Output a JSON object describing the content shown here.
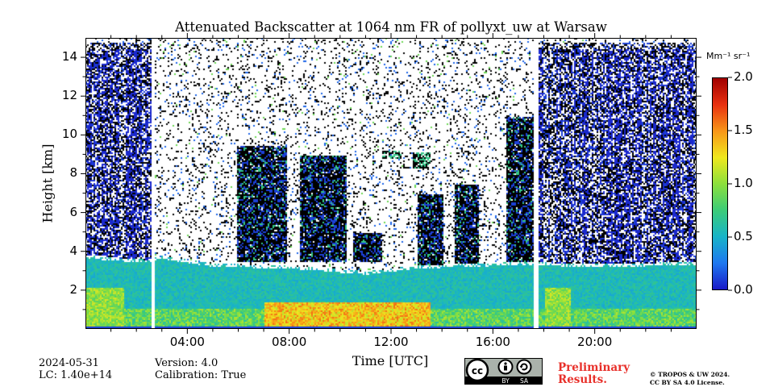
{
  "chart_data": {
    "type": "heatmap",
    "title": "Attenuated Backscatter at 1064 nm FR of pollyxt_uw at Warsaw",
    "xlabel": "Time [UTC]",
    "ylabel": "Height [km]",
    "xlim": [
      0,
      24
    ],
    "ylim": [
      0,
      15
    ],
    "x_ticks": [
      {
        "value": 4,
        "label": "04:00"
      },
      {
        "value": 8,
        "label": "08:00"
      },
      {
        "value": 12,
        "label": "12:00"
      },
      {
        "value": 16,
        "label": "16:00"
      },
      {
        "value": 20,
        "label": "20:00"
      }
    ],
    "x_minor_step": 1,
    "y_ticks": [
      {
        "value": 2,
        "label": "2"
      },
      {
        "value": 4,
        "label": "4"
      },
      {
        "value": 6,
        "label": "6"
      },
      {
        "value": 8,
        "label": "8"
      },
      {
        "value": 10,
        "label": "10"
      },
      {
        "value": 12,
        "label": "12"
      },
      {
        "value": 14,
        "label": "14"
      }
    ],
    "colorbar": {
      "label": "Mm⁻¹ sr⁻¹",
      "range": [
        0.0,
        2.0
      ],
      "ticks": [
        {
          "value": 0.0,
          "label": "0.0"
        },
        {
          "value": 0.5,
          "label": "0.5"
        },
        {
          "value": 1.0,
          "label": "1.0"
        },
        {
          "value": 1.5,
          "label": "1.5"
        },
        {
          "value": 2.0,
          "label": "2.0"
        }
      ],
      "colormap": [
        "#1a1ac8",
        "#1e78f0",
        "#18b4c8",
        "#3ccc78",
        "#8ce03c",
        "#f0e81e",
        "#f89618",
        "#e83010",
        "#a00000"
      ]
    },
    "data_gaps_hours": [
      [
        2.55,
        2.7
      ],
      [
        17.6,
        17.75
      ]
    ],
    "boundary_layer_top_km": [
      {
        "t": 0.2,
        "h": 3.8
      },
      {
        "t": 2.4,
        "h": 3.6
      },
      {
        "t": 3.0,
        "h": 3.8
      },
      {
        "t": 5.0,
        "h": 3.4
      },
      {
        "t": 8.0,
        "h": 3.3
      },
      {
        "t": 11.0,
        "h": 3.0
      },
      {
        "t": 13.0,
        "h": 3.3
      },
      {
        "t": 15.0,
        "h": 3.4
      },
      {
        "t": 17.5,
        "h": 3.5
      },
      {
        "t": 19.0,
        "h": 3.4
      },
      {
        "t": 21.0,
        "h": 3.4
      },
      {
        "t": 23.9,
        "h": 3.5
      }
    ],
    "cloud_layers": [
      {
        "t0": 5.9,
        "t1": 7.9,
        "h0": 3.5,
        "h1": 9.5
      },
      {
        "t0": 8.4,
        "t1": 10.2,
        "h0": 3.5,
        "h1": 9.0
      },
      {
        "t0": 10.5,
        "t1": 11.6,
        "h0": 3.5,
        "h1": 5.0
      },
      {
        "t0": 13.0,
        "t1": 14.0,
        "h0": 3.0,
        "h1": 7.0
      },
      {
        "t0": 14.5,
        "t1": 15.4,
        "h0": 3.0,
        "h1": 7.5
      },
      {
        "t0": 16.5,
        "t1": 17.6,
        "h0": 3.5,
        "h1": 11.0
      }
    ],
    "elevated_features": [
      {
        "t0": 11.6,
        "t1": 12.4,
        "h0": 8.8,
        "h1": 9.2
      },
      {
        "t0": 12.8,
        "t1": 13.5,
        "h0": 8.3,
        "h1": 9.1
      }
    ]
  },
  "footer": {
    "date": "2024-05-31",
    "lc": "LC: 1.40e+14",
    "version": "Version: 4.0",
    "calibration": "Calibration: True",
    "preliminary_line1": "Preliminary",
    "preliminary_line2": "Results.",
    "copyright_line1": "© TROPOS & UW 2024.",
    "copyright_line2": "CC BY SA 4.0 License.",
    "license_by": "BY",
    "license_sa": "SA"
  }
}
